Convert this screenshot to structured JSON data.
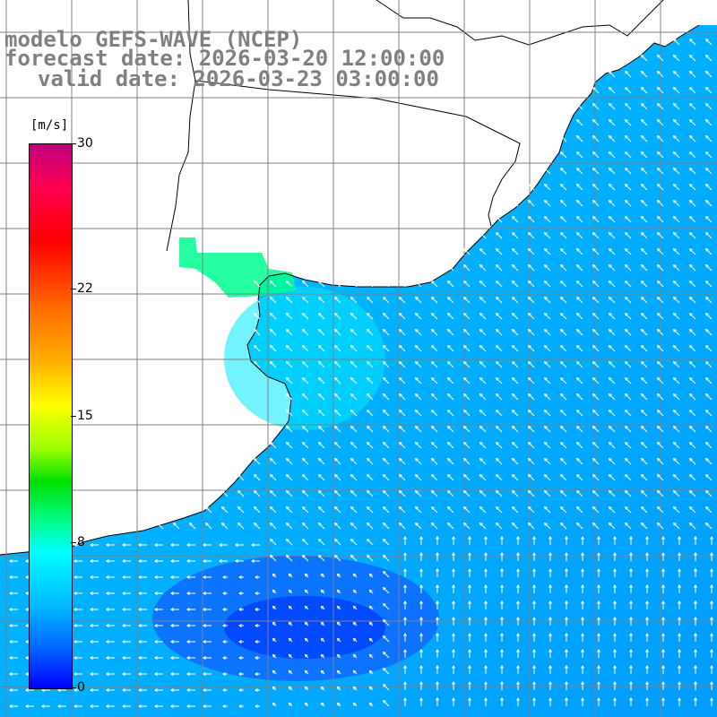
{
  "title": {
    "model": "modelo GEFS-WAVE (NCEP)",
    "forecast": "forecast date: 2026-03-20 12:00:00",
    "valid": "valid date: 2026-03-23 03:00:00"
  },
  "colorbar": {
    "unit": "[m/s]",
    "min": 0,
    "max": 30,
    "ticks": [
      {
        "value": 30,
        "label": "30"
      },
      {
        "value": 22,
        "label": "22"
      },
      {
        "value": 15,
        "label": "15"
      },
      {
        "value": 8,
        "label": "8"
      },
      {
        "value": 0,
        "label": "0"
      }
    ],
    "colors": [
      "#0000ff",
      "#00b8ff",
      "#00ffff",
      "#00e000",
      "#ffff00",
      "#ff6a00",
      "#ff0000",
      "#c0007f"
    ]
  },
  "colors": {
    "land": "#ffffff",
    "grid": "#808080",
    "coast": "#000000",
    "arrow": "#ffffff"
  },
  "field": {
    "wind_speed_note": "wind speed 10m field, mostly 3-9 m/s, strongest near river mouth (~11 m/s)"
  }
}
